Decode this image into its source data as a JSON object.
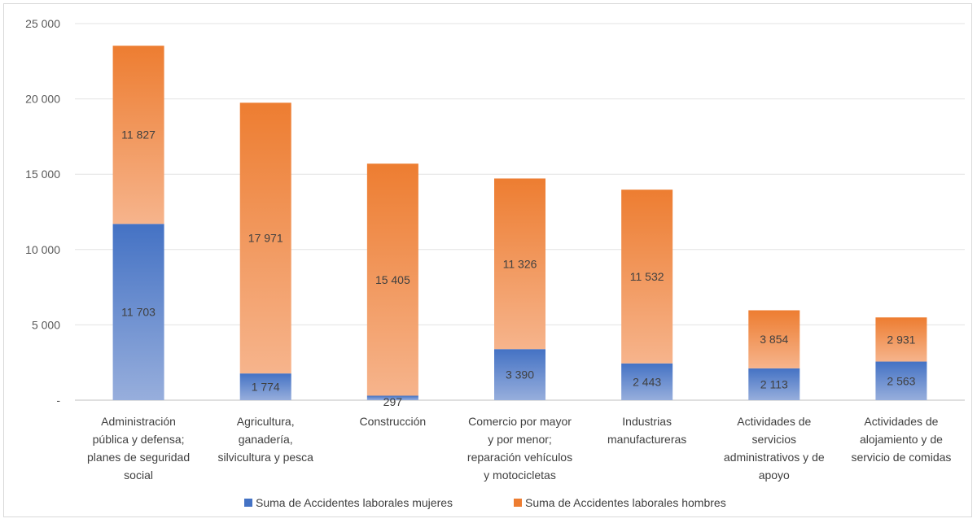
{
  "chart_data": {
    "type": "bar",
    "stacked": true,
    "categories": [
      "Administración pública y defensa; planes de seguridad social",
      "Agricultura, ganadería, silvicultura y pesca",
      "Construcción",
      "Comercio por mayor y por menor; reparación vehículos y motocicletas",
      "Industrias manufactureras",
      "Actividades de servicios administrativos y de apoyo",
      "Actividades de alojamiento y de servicio de comidas"
    ],
    "category_lines": [
      [
        "Administración",
        "pública y defensa;",
        "planes de seguridad",
        "social"
      ],
      [
        "Agricultura,",
        "ganadería,",
        "silvicultura y pesca"
      ],
      [
        "Construcción"
      ],
      [
        "Comercio por mayor",
        "y por menor;",
        "reparación vehículos",
        "y motocicletas"
      ],
      [
        "Industrias",
        "manufactureras"
      ],
      [
        "Actividades de",
        "servicios",
        "administrativos y de",
        "apoyo"
      ],
      [
        "Actividades de",
        "alojamiento y de",
        "servicio de comidas"
      ]
    ],
    "series": [
      {
        "name": "Suma de Accidentes laborales mujeres",
        "color": "#4472c4",
        "values": [
          11703,
          1774,
          297,
          3390,
          2443,
          2113,
          2563
        ],
        "labels": [
          "11 703",
          "1 774",
          "297",
          "3 390",
          "2 443",
          "2 113",
          "2 563"
        ]
      },
      {
        "name": "Suma de Accidentes laborales hombres",
        "color": "#ed7d31",
        "values": [
          11827,
          17971,
          15405,
          11326,
          11532,
          3854,
          2931
        ],
        "labels": [
          "11 827",
          "17 971",
          "15 405",
          "11 326",
          "11 532",
          "3 854",
          "2 931"
        ]
      }
    ],
    "ylim": [
      0,
      25000
    ],
    "yticks": [
      0,
      5000,
      10000,
      15000,
      20000,
      25000
    ],
    "ytick_labels": [
      "-",
      "5 000",
      "10 000",
      "15 000",
      "20 000",
      "25 000"
    ],
    "grid": true,
    "legend_position": "bottom"
  }
}
